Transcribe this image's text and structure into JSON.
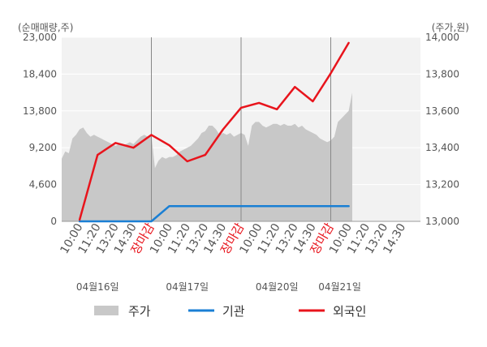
{
  "chart_data": {
    "type": "line",
    "left_axis": {
      "unit_label": "(순매매량,주)",
      "ticks": [
        0,
        4600,
        9200,
        13800,
        18400,
        23000
      ],
      "tick_labels": [
        "0",
        "4,600",
        "9,200",
        "13,800",
        "18,400",
        "23,000"
      ],
      "range": [
        0,
        23000
      ]
    },
    "right_axis": {
      "unit_label": "(주가,원)",
      "ticks": [
        13000,
        13200,
        13400,
        13600,
        13800,
        14000
      ],
      "tick_labels": [
        "13,000",
        "13,200",
        "13,400",
        "13,600",
        "13,800",
        "14,000"
      ],
      "range": [
        13000,
        14000
      ]
    },
    "x_axis": {
      "slot_count": 20,
      "tick_labels": [
        "10:00",
        "11:20",
        "13:20",
        "14:30",
        "장마감",
        "10:00",
        "11:20",
        "13:20",
        "14:30",
        "장마감",
        "10:00",
        "11:20",
        "13:20",
        "14:30",
        "장마감",
        "10:00",
        "11:20",
        "13:20",
        "14:30"
      ],
      "closing_label": "장마감",
      "session_separators": [
        5,
        10,
        15
      ],
      "dates": [
        {
          "label": "04월16일",
          "slot": 2
        },
        {
          "label": "04월17일",
          "slot": 7
        },
        {
          "label": "04월20일",
          "slot": 12
        },
        {
          "label": "04월21일",
          "slot": 15.5
        }
      ]
    },
    "series": [
      {
        "name": "주가",
        "kind": "area",
        "axis": "right",
        "color": "#c8c8c8",
        "x": [
          0.0,
          0.2,
          0.4,
          0.6,
          0.8,
          1.0,
          1.2,
          1.4,
          1.6,
          1.8,
          2.0,
          2.2,
          2.4,
          2.6,
          2.8,
          3.0,
          3.2,
          3.4,
          3.6,
          3.8,
          4.0,
          4.2,
          4.4,
          4.6,
          4.8,
          5.0,
          5.2,
          5.4,
          5.6,
          5.8,
          6.0,
          6.2,
          6.4,
          6.6,
          6.8,
          7.0,
          7.2,
          7.4,
          7.6,
          7.8,
          8.0,
          8.2,
          8.4,
          8.6,
          8.8,
          9.0,
          9.2,
          9.4,
          9.6,
          9.8,
          10.0,
          10.2,
          10.4,
          10.6,
          10.8,
          11.0,
          11.2,
          11.4,
          11.6,
          11.8,
          12.0,
          12.2,
          12.4,
          12.6,
          12.8,
          13.0,
          13.2,
          13.4,
          13.6,
          13.8,
          14.0,
          14.2,
          14.4,
          14.6,
          14.8,
          15.0,
          15.2,
          15.4,
          15.6,
          15.8,
          16.0,
          16.2
        ],
        "values": [
          13340,
          13380,
          13370,
          13450,
          13470,
          13500,
          13510,
          13480,
          13460,
          13470,
          13460,
          13450,
          13440,
          13430,
          13420,
          13410,
          13420,
          13410,
          13420,
          13430,
          13420,
          13440,
          13460,
          13470,
          13460,
          13470,
          13290,
          13330,
          13350,
          13340,
          13350,
          13350,
          13360,
          13380,
          13390,
          13400,
          13410,
          13430,
          13450,
          13480,
          13490,
          13520,
          13520,
          13500,
          13470,
          13480,
          13470,
          13480,
          13460,
          13470,
          13480,
          13470,
          13410,
          13520,
          13540,
          13540,
          13520,
          13510,
          13520,
          13530,
          13530,
          13520,
          13530,
          13520,
          13520,
          13530,
          13510,
          13520,
          13500,
          13490,
          13480,
          13470,
          13450,
          13440,
          13430,
          13440,
          13460,
          13540,
          13560,
          13580,
          13600,
          13700
        ]
      },
      {
        "name": "기관",
        "kind": "line",
        "axis": "left",
        "color": "#1a7fd4",
        "x": [
          1,
          2,
          3,
          4,
          5,
          6,
          7,
          8,
          9,
          10,
          11,
          12,
          13,
          14,
          15,
          16
        ],
        "values": [
          0,
          0,
          0,
          0,
          0,
          1900,
          1900,
          1900,
          1900,
          1900,
          1900,
          1900,
          1900,
          1900,
          1900,
          1900
        ]
      },
      {
        "name": "외국인",
        "kind": "line",
        "axis": "left",
        "color": "#e8141c",
        "x": [
          1,
          2,
          3,
          4,
          5,
          6,
          7,
          8,
          9,
          10,
          11,
          12,
          13,
          14,
          15,
          16
        ],
        "values": [
          200,
          8300,
          9800,
          9200,
          10800,
          9500,
          7500,
          8300,
          11500,
          14200,
          14800,
          14000,
          16800,
          15000,
          18500,
          22300
        ]
      }
    ],
    "legend": {
      "placement": "bottom",
      "items": [
        {
          "label": "주가",
          "swatch": "area",
          "color": "#c8c8c8"
        },
        {
          "label": "기관",
          "swatch": "line",
          "color": "#1a7fd4"
        },
        {
          "label": "외국인",
          "swatch": "line",
          "color": "#e8141c"
        }
      ]
    },
    "colors": {
      "plot_background": "#f2f2f2",
      "grid": "#ffffff",
      "separator": "#888888",
      "closing_label": "#e8141c",
      "text": "#555555"
    }
  }
}
